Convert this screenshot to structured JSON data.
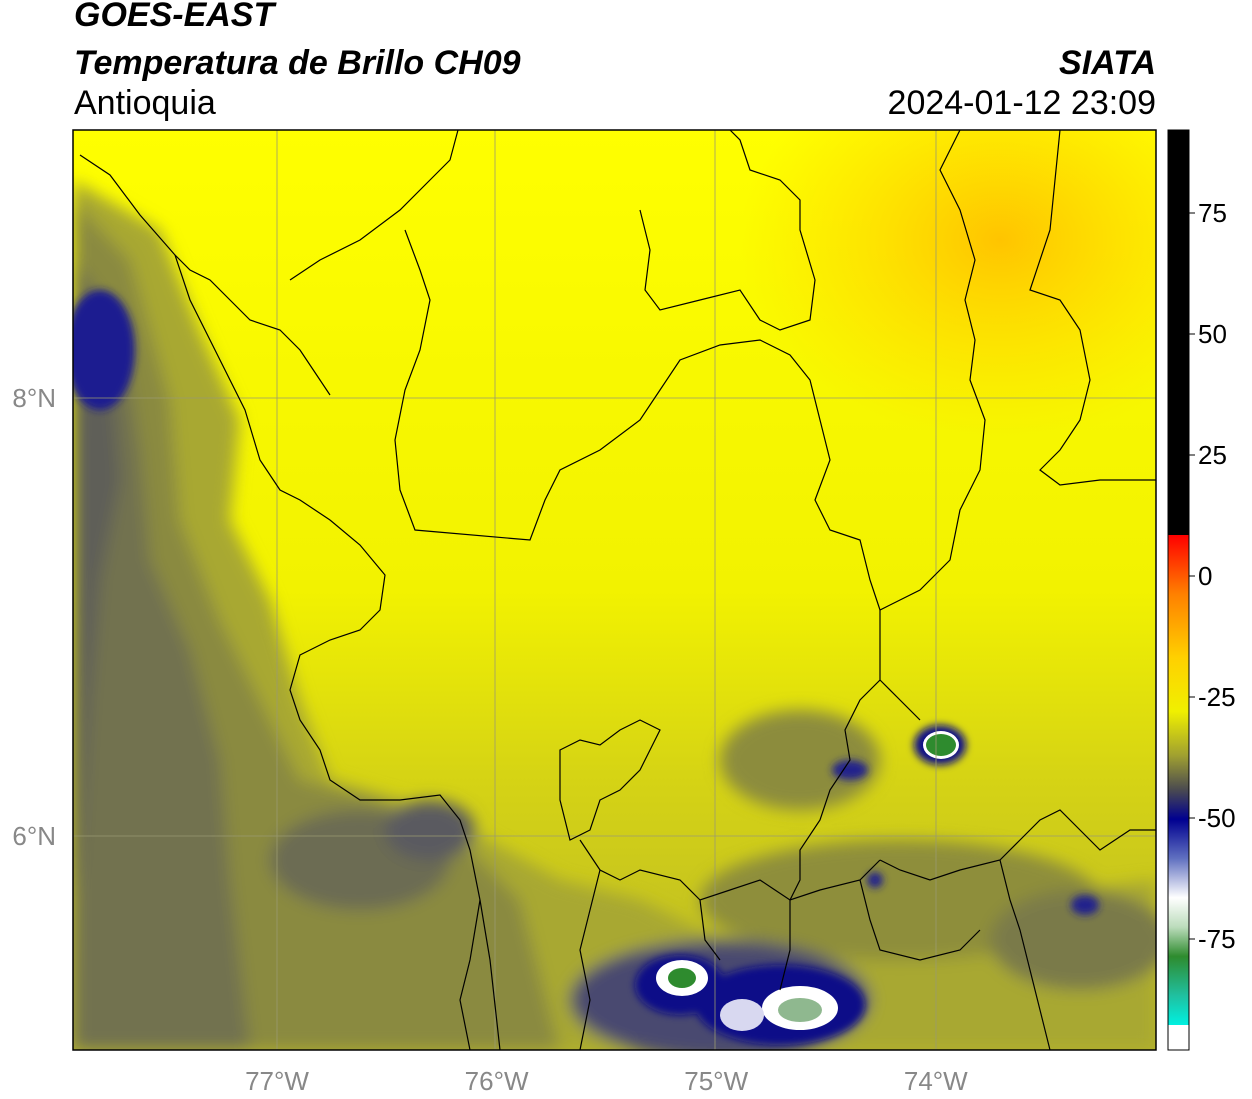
{
  "header": {
    "satellite": "GOES-EAST",
    "product": "Temperatura de Brillo CH09",
    "agency": "SIATA",
    "region": "Antioquia",
    "datetime": "2024-01-12 23:09"
  },
  "map": {
    "lat_labels": [
      {
        "label": "8°N",
        "value": 8
      },
      {
        "label": "6°N",
        "value": 6
      }
    ],
    "lon_labels": [
      {
        "label": "77°W",
        "value": -77
      },
      {
        "label": "76°W",
        "value": -76
      },
      {
        "label": "75°W",
        "value": -75
      },
      {
        "label": "74°W",
        "value": -74
      }
    ],
    "colors": {
      "yellow": "#ffff00",
      "orange_yellow": "#ffd200",
      "olive": "#a6a62a",
      "dark_olive": "#5c5c48",
      "navy": "#101088",
      "white": "#ffffff",
      "green": "#2e8b2e"
    }
  },
  "colorbar": {
    "ticks": [
      {
        "label": "75",
        "value": 75
      },
      {
        "label": "50",
        "value": 50
      },
      {
        "label": "25",
        "value": 25
      },
      {
        "label": "0",
        "value": 0
      },
      {
        "label": "-25",
        "value": -25
      },
      {
        "label": "-50",
        "value": -50
      },
      {
        "label": "-75",
        "value": -75
      }
    ],
    "range": [
      -95,
      90
    ]
  }
}
